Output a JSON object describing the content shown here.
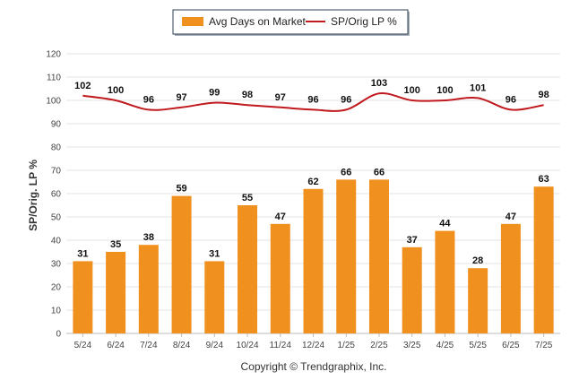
{
  "chart_data": {
    "type": "bar",
    "categories": [
      "5/24",
      "6/24",
      "7/24",
      "8/24",
      "9/24",
      "10/24",
      "11/24",
      "12/24",
      "1/25",
      "2/25",
      "3/25",
      "4/25",
      "5/25",
      "6/25",
      "7/25"
    ],
    "series": [
      {
        "name": "Avg Days on Market",
        "type": "bar",
        "color": "#f0901e",
        "values": [
          31,
          35,
          38,
          59,
          31,
          55,
          47,
          62,
          66,
          66,
          37,
          44,
          28,
          47,
          63
        ]
      },
      {
        "name": "SP/Orig LP %",
        "type": "line",
        "color": "#c0191e",
        "values": [
          102,
          100,
          96,
          97,
          99,
          98,
          97,
          96,
          96,
          103,
          100,
          100,
          101,
          96,
          98
        ]
      }
    ],
    "ylabel": "SP/Orig. LP %",
    "ylim": [
      0,
      120
    ],
    "yticks": [
      0,
      10,
      20,
      30,
      40,
      50,
      60,
      70,
      80,
      90,
      100,
      110,
      120
    ],
    "grid": true,
    "legend_position": "top-center"
  },
  "footer": {
    "copyright": "Copyright © Trendgraphix, Inc."
  }
}
